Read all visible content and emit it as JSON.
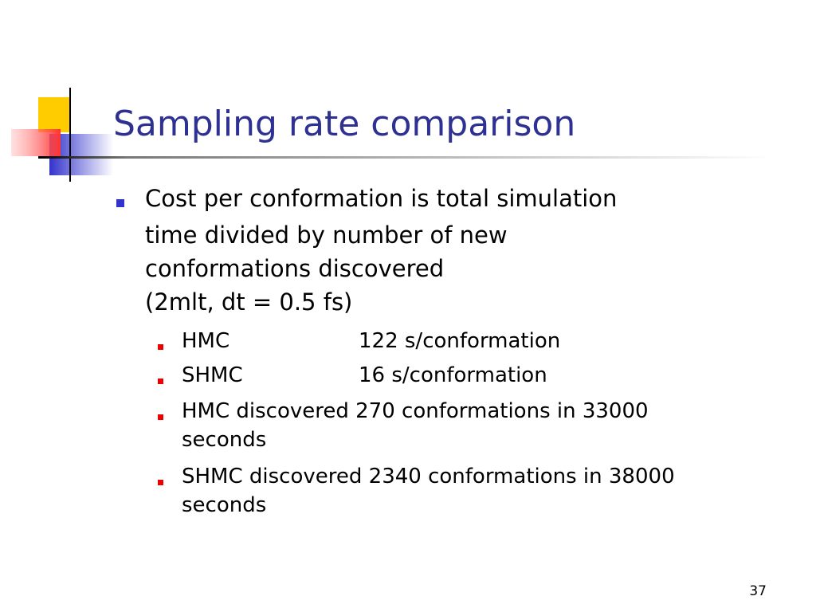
{
  "title": "Sampling rate comparison",
  "bullet": {
    "lines": [
      "Cost per conformation is total simulation",
      "time divided by number of new",
      "conformations discovered",
      "(2mlt, dt = 0.5 fs)"
    ],
    "sub_bullets": [
      {
        "columns": [
          "HMC",
          "122 s/conformation"
        ]
      },
      {
        "columns": [
          "SHMC",
          "16 s/conformation"
        ]
      },
      {
        "lines": [
          "HMC discovered 270 conformations in 33000",
          "seconds"
        ]
      },
      {
        "lines": [
          "SHMC discovered 2340 conformations in 38000",
          "seconds"
        ]
      }
    ]
  },
  "page_number": "37"
}
